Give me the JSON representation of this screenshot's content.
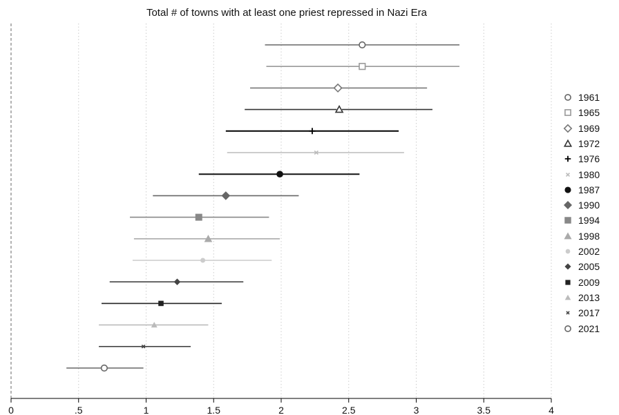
{
  "chart_data": {
    "type": "scatter",
    "title": "Total # of towns with at least one priest repressed in Nazi Era",
    "xlabel": "",
    "ylabel": "",
    "xlim": [
      0,
      4
    ],
    "x_ticks": [
      0,
      0.5,
      1,
      1.5,
      2,
      2.5,
      3,
      3.5,
      4
    ],
    "x_tick_labels": [
      "0",
      ".5",
      "1",
      "1.5",
      "2",
      "2.5",
      "3",
      "3.5",
      "4"
    ],
    "reference_line_x": 0,
    "grid": "vertical-dotted",
    "legend_position": "right",
    "series": [
      {
        "name": "1961",
        "estimate": 2.6,
        "ci_low": 1.88,
        "ci_high": 3.32,
        "marker": "circle-open",
        "color": "#666666"
      },
      {
        "name": "1965",
        "estimate": 2.6,
        "ci_low": 1.89,
        "ci_high": 3.32,
        "marker": "square-open",
        "color": "#999999"
      },
      {
        "name": "1969",
        "estimate": 2.42,
        "ci_low": 1.77,
        "ci_high": 3.08,
        "marker": "diamond-open",
        "color": "#777777"
      },
      {
        "name": "1972",
        "estimate": 2.43,
        "ci_low": 1.73,
        "ci_high": 3.12,
        "marker": "triangle-open",
        "color": "#333333"
      },
      {
        "name": "1976",
        "estimate": 2.23,
        "ci_low": 1.59,
        "ci_high": 2.87,
        "marker": "plus",
        "color": "#000000"
      },
      {
        "name": "1980",
        "estimate": 2.26,
        "ci_low": 1.6,
        "ci_high": 2.91,
        "marker": "x",
        "color": "#bbbbbb"
      },
      {
        "name": "1987",
        "estimate": 1.99,
        "ci_low": 1.39,
        "ci_high": 2.58,
        "marker": "circle",
        "color": "#111111"
      },
      {
        "name": "1990",
        "estimate": 1.59,
        "ci_low": 1.05,
        "ci_high": 2.13,
        "marker": "diamond",
        "color": "#666666"
      },
      {
        "name": "1994",
        "estimate": 1.39,
        "ci_low": 0.88,
        "ci_high": 1.91,
        "marker": "square",
        "color": "#888888"
      },
      {
        "name": "1998",
        "estimate": 1.46,
        "ci_low": 0.91,
        "ci_high": 1.99,
        "marker": "triangle",
        "color": "#aaaaaa"
      },
      {
        "name": "2002",
        "estimate": 1.42,
        "ci_low": 0.9,
        "ci_high": 1.93,
        "marker": "circle-small",
        "color": "#cccccc"
      },
      {
        "name": "2005",
        "estimate": 1.23,
        "ci_low": 0.73,
        "ci_high": 1.72,
        "marker": "diamond-small",
        "color": "#444444"
      },
      {
        "name": "2009",
        "estimate": 1.11,
        "ci_low": 0.67,
        "ci_high": 1.56,
        "marker": "square-small",
        "color": "#222222"
      },
      {
        "name": "2013",
        "estimate": 1.06,
        "ci_low": 0.65,
        "ci_high": 1.46,
        "marker": "triangle-small",
        "color": "#bbbbbb"
      },
      {
        "name": "2017",
        "estimate": 0.98,
        "ci_low": 0.65,
        "ci_high": 1.33,
        "marker": "x-small",
        "color": "#444444"
      },
      {
        "name": "2021",
        "estimate": 0.69,
        "ci_low": 0.41,
        "ci_high": 0.98,
        "marker": "circle-open",
        "color": "#666666"
      }
    ]
  }
}
